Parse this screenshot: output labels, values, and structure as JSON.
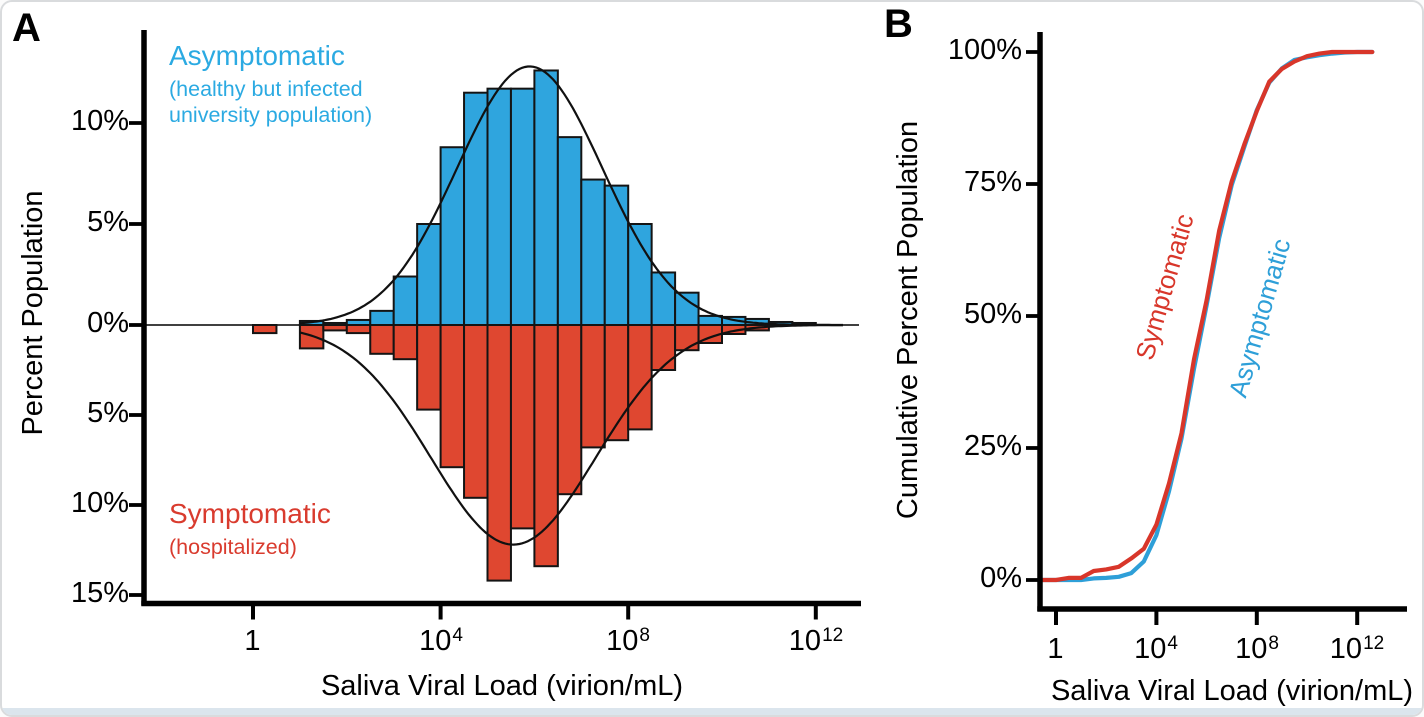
{
  "figure": {
    "colors": {
      "asymptomatic_blue": "#2FA5DE",
      "symptomatic_red": "#DF4730",
      "text_blue": "#2BAAE2",
      "text_red": "#D93B2E",
      "axis_black": "#000000",
      "cdf_red": "#D8362A",
      "cdf_blue": "#2E9FD8"
    },
    "panel_a": {
      "label": "A",
      "y_axis_label": "Percent Population",
      "x_axis_label": "Saliva Viral Load (virion/mL)",
      "y_tick_labels": [
        "10%",
        "5%",
        "0%",
        "5%",
        "10%",
        "15%"
      ],
      "x_tick_labels": [
        {
          "base": "1",
          "exp": ""
        },
        {
          "base": "10",
          "exp": "4"
        },
        {
          "base": "10",
          "exp": "8"
        },
        {
          "base": "10",
          "exp": "12"
        }
      ],
      "annotation_up": {
        "title": "Asymptomatic",
        "line1": "(healthy but infected",
        "line2": "university population)"
      },
      "annotation_down": {
        "title": "Symptomatic",
        "line1": "(hospitalized)"
      }
    },
    "panel_b": {
      "label": "B",
      "y_axis_label": "Cumulative Percent Population",
      "x_axis_label": "Saliva Viral Load (virion/mL)",
      "y_tick_labels": [
        "100%",
        "75%",
        "50%",
        "25%",
        "0%"
      ],
      "x_tick_labels": [
        {
          "base": "1",
          "exp": ""
        },
        {
          "base": "10",
          "exp": "4"
        },
        {
          "base": "10",
          "exp": "8"
        },
        {
          "base": "10",
          "exp": "12"
        }
      ],
      "curve_label_red": "Symptomatic",
      "curve_label_blue": "Asymptomatic"
    }
  },
  "chart_data": [
    {
      "type": "bar",
      "subtype": "mirrored-histogram",
      "panel": "A",
      "title": "",
      "xlabel": "Saliva Viral Load (virion/mL)",
      "ylabel": "Percent Population",
      "x_scale": "log10",
      "x_unit": "virion/mL",
      "grid": false,
      "bin_width_log10": 0.5,
      "bin_centers_log10": [
        0.25,
        0.75,
        1.25,
        1.75,
        2.25,
        2.75,
        3.25,
        3.75,
        4.25,
        4.75,
        5.25,
        5.75,
        6.25,
        6.75,
        7.25,
        7.75,
        8.25,
        8.75,
        9.25,
        9.75,
        10.25,
        10.75,
        11.25,
        11.75
      ],
      "x_ticks_log10": [
        0,
        4,
        8,
        12
      ],
      "y_tick_positions_percent": [
        10,
        5,
        0,
        -5,
        -10,
        -15
      ],
      "ylim_percent": [
        -15.8,
        14.6
      ],
      "series": [
        {
          "name": "Asymptomatic (healthy but infected university population)",
          "direction": "up",
          "color": "#2FA5DE",
          "values_percent": [
            0,
            0,
            0.2,
            0.1,
            0.25,
            0.7,
            2.4,
            5.0,
            8.8,
            11.5,
            11.7,
            11.7,
            12.6,
            9.3,
            7.2,
            6.9,
            5.0,
            2.6,
            1.6,
            0.45,
            0.4,
            0.3,
            0.15,
            0.1
          ]
        },
        {
          "name": "Symptomatic (hospitalized)",
          "direction": "down",
          "color": "#DF4730",
          "values_percent": [
            0.45,
            0,
            1.3,
            0.3,
            0.45,
            1.6,
            1.9,
            4.7,
            7.9,
            9.6,
            14.2,
            11.3,
            13.4,
            9.4,
            6.8,
            6.4,
            5.8,
            2.5,
            1.4,
            1.0,
            0.5,
            0.3,
            0,
            0
          ]
        }
      ],
      "fit_curves": [
        {
          "series": "Asymptomatic",
          "shape": "gaussian-log10",
          "direction": "up",
          "amplitude_percent": 12.8,
          "mean_log10": 5.9,
          "sigma_log10": 1.55
        },
        {
          "series": "Symptomatic",
          "shape": "gaussian-log10",
          "direction": "down",
          "amplitude_percent": 12.2,
          "mean_log10": 5.55,
          "sigma_log10": 1.75
        }
      ]
    },
    {
      "type": "line",
      "subtype": "cdf",
      "panel": "B",
      "title": "",
      "xlabel": "Saliva Viral Load (virion/mL)",
      "ylabel": "Cumulative Percent Population",
      "x_scale": "log10",
      "x_unit": "virion/mL",
      "grid": false,
      "legend_position": "inline-rotated",
      "x_ticks_log10": [
        0,
        4,
        8,
        12
      ],
      "y_ticks_percent": [
        0,
        25,
        50,
        75,
        100
      ],
      "ylim_percent": [
        0,
        100
      ],
      "x_edges_log10": [
        0,
        0.5,
        1,
        1.5,
        2,
        2.5,
        3,
        3.5,
        4,
        4.5,
        5,
        5.5,
        6,
        6.5,
        7,
        7.5,
        8,
        8.5,
        9,
        9.5,
        10,
        10.5,
        11,
        11.5,
        12
      ],
      "x_plot_range_log10": [
        -0.55,
        12.6
      ],
      "series": [
        {
          "name": "Asymptomatic",
          "color": "#2E9FD8",
          "cumulative_percent": [
            0,
            0,
            0,
            0.3,
            0.4,
            0.6,
            1.3,
            3.5,
            8.5,
            16.8,
            26.8,
            40.0,
            52.0,
            64.8,
            74.8,
            82.0,
            89.0,
            94.2,
            96.9,
            98.5,
            99.0,
            99.4,
            99.7,
            99.9,
            100
          ]
        },
        {
          "name": "Symptomatic",
          "color": "#D8362A",
          "cumulative_percent": [
            0,
            0.4,
            0.4,
            1.7,
            2.0,
            2.5,
            4.1,
            5.9,
            10.5,
            18.3,
            27.8,
            41.8,
            53.0,
            66.2,
            75.5,
            82.5,
            88.8,
            94.4,
            96.8,
            98.2,
            99.2,
            99.7,
            100,
            100,
            100
          ]
        }
      ]
    }
  ]
}
